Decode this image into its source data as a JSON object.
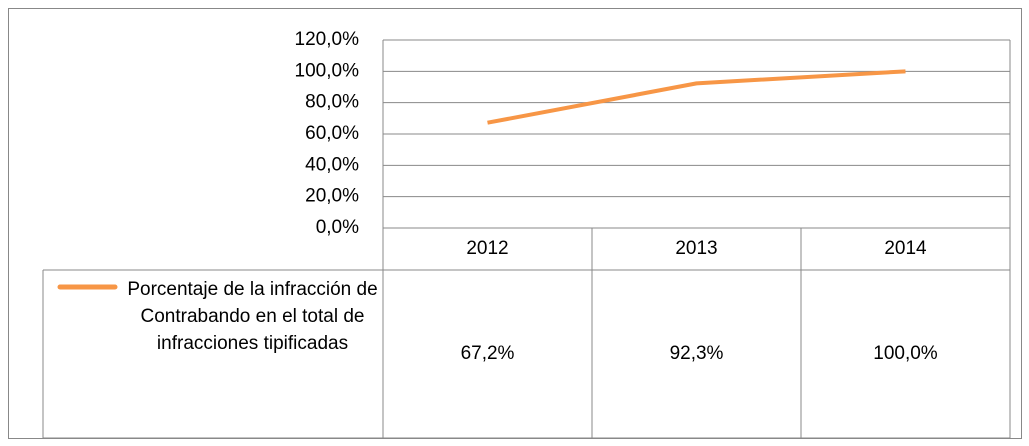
{
  "chart_data": {
    "type": "line",
    "categories": [
      "2012",
      "2013",
      "2014"
    ],
    "series": [
      {
        "name": "Porcentaje de la infracción de Contrabando en el total de infracciones tipificadas",
        "color": "#f79646",
        "values": [
          67.2,
          92.3,
          100.0
        ],
        "value_labels": [
          "67,2%",
          "92,3%",
          "100,0%"
        ]
      }
    ],
    "ylim": [
      0,
      120
    ],
    "yticks": [
      {
        "value": 0,
        "label": "0,0%"
      },
      {
        "value": 20,
        "label": "20,0%"
      },
      {
        "value": 40,
        "label": "40,0%"
      },
      {
        "value": 60,
        "label": "60,0%"
      },
      {
        "value": 80,
        "label": "80,0%"
      },
      {
        "value": 100,
        "label": "100,0%"
      },
      {
        "value": 120,
        "label": "120,0%"
      }
    ],
    "grid": true,
    "data_table": true
  }
}
